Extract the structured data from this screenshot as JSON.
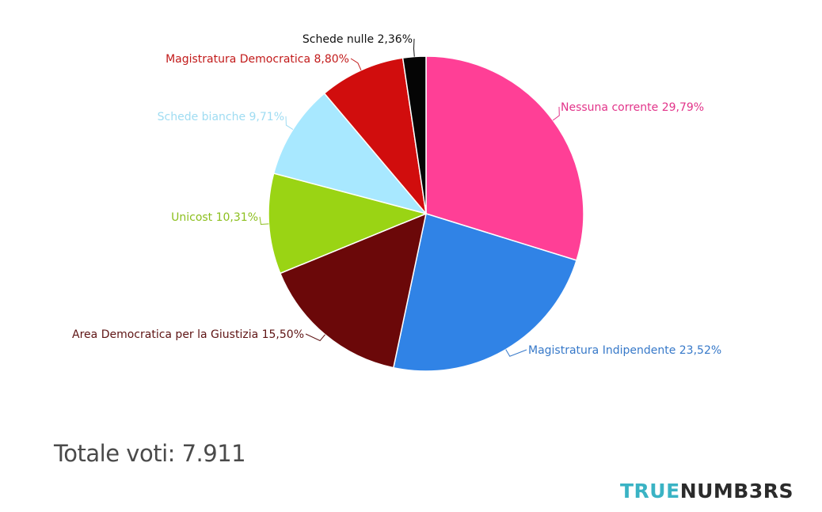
{
  "chart_data": {
    "type": "pie",
    "title": "",
    "slices": [
      {
        "label": "Nessuna corrente 29,79%",
        "name": "Nessuna corrente",
        "value": 29.79,
        "color": "#ff3f96",
        "label_color": "#e2348a"
      },
      {
        "label": "Magistratura Indipendente 23,52%",
        "name": "Magistratura Indipendente",
        "value": 23.52,
        "color": "#3083e6",
        "label_color": "#3779c9"
      },
      {
        "label": "Area Democratica per la Giustizia 15,50%",
        "name": "Area Democratica per la Giustizia",
        "value": 15.5,
        "color": "#6b0809",
        "label_color": "#5e1414"
      },
      {
        "label": "Unicost 10,31%",
        "name": "Unicost",
        "value": 10.31,
        "color": "#9ad414",
        "label_color": "#8cbf1e"
      },
      {
        "label": "Schede bianche 9,71%",
        "name": "Schede bianche",
        "value": 9.71,
        "color": "#a8e8ff",
        "label_color": "#9fdcf2"
      },
      {
        "label": "Magistratura Democratica 8,80%",
        "name": "Magistratura Democratica",
        "value": 8.8,
        "color": "#d10d0d",
        "label_color": "#c21a1a"
      },
      {
        "label": "Schede nulle 2,36%",
        "name": "Schede nulle",
        "value": 2.36,
        "color": "#050505",
        "label_color": "#111111"
      }
    ]
  },
  "footer": {
    "total_text": "Totale voti: 7.911",
    "brand_part1": "TRUE",
    "brand_part2": "NUMB3RS"
  }
}
